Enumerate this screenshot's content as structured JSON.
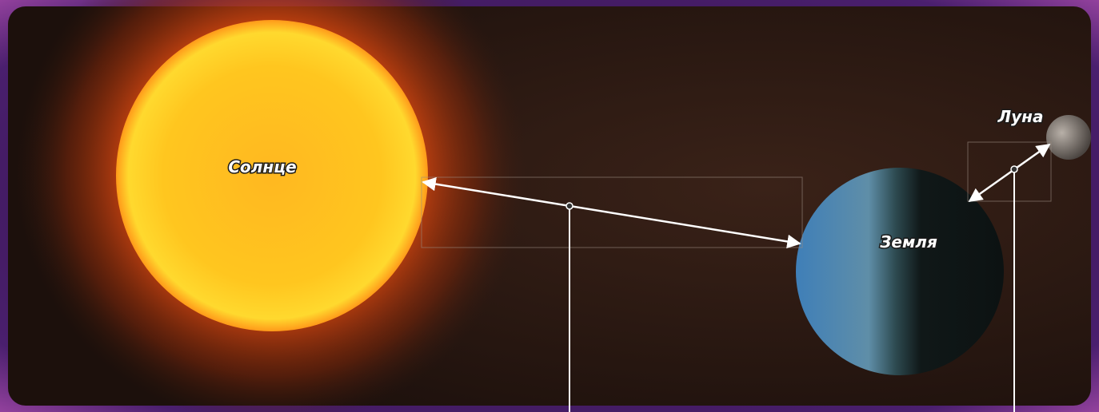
{
  "labels": {
    "sun": "Солнце",
    "earth": "Земля",
    "moon": "Луна"
  }
}
